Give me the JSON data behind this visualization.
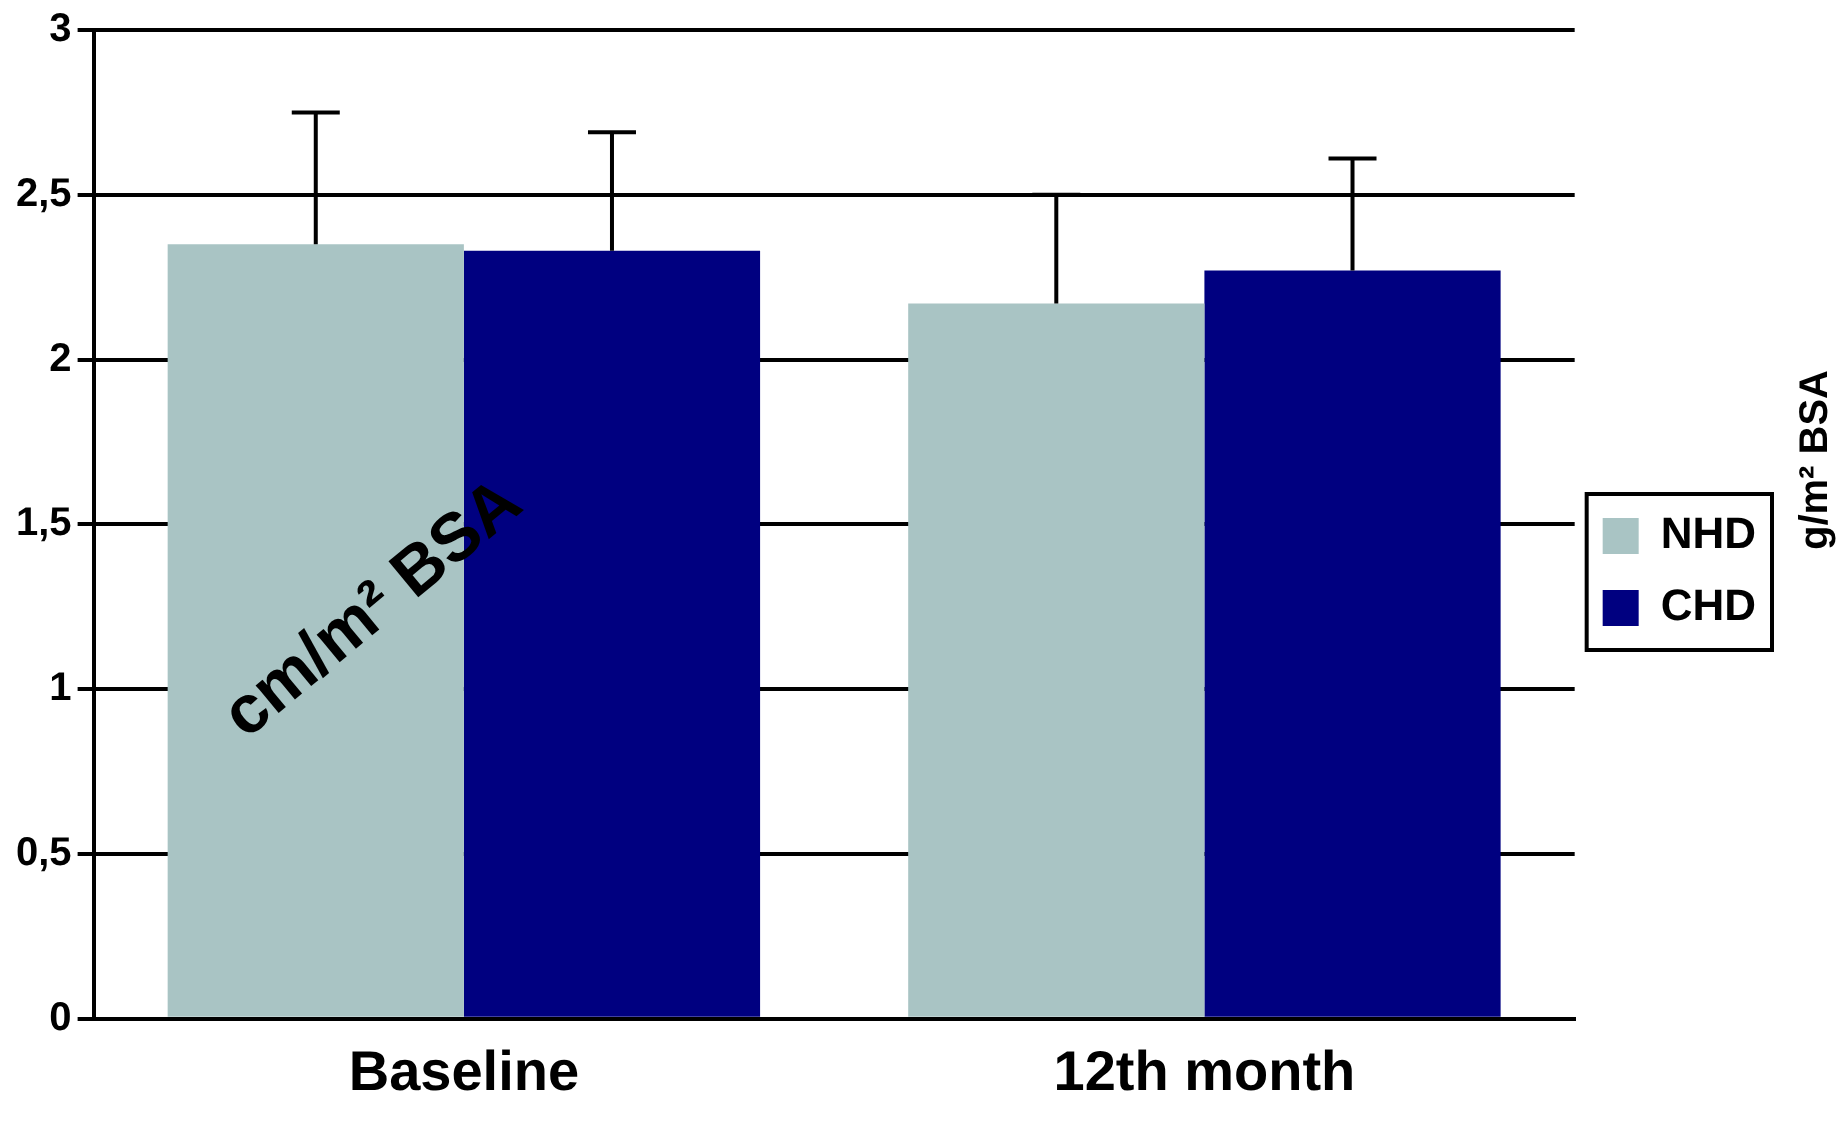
{
  "chart_data": {
    "type": "bar",
    "categories": [
      "Baseline",
      "12th month"
    ],
    "series": [
      {
        "name": "NHD",
        "color": "#a9c4c4",
        "values": [
          2.35,
          2.17
        ],
        "errors": [
          0.4,
          0.33
        ]
      },
      {
        "name": "CHD",
        "color": "#000080",
        "values": [
          2.33,
          2.27
        ],
        "errors": [
          0.36,
          0.34
        ]
      }
    ],
    "ylim": [
      0,
      3
    ],
    "yticks": [
      0,
      {
        "value": 0.5,
        "label": "0,5"
      },
      1,
      {
        "value": 1.5,
        "label": "1,5"
      },
      2,
      {
        "value": 2.5,
        "label": "2,5"
      },
      3
    ],
    "grid": "y",
    "legend": "right",
    "annotations": [
      "cm/m² BSA",
      "g/m² BSA"
    ]
  }
}
